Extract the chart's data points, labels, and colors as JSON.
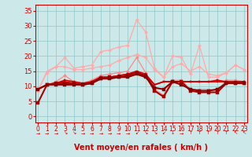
{
  "xlabel": "Vent moyen/en rafales ( km/h )",
  "bg_color": "#cce8e8",
  "grid_color": "#99cccc",
  "x_values": [
    0,
    1,
    2,
    3,
    4,
    5,
    6,
    7,
    8,
    9,
    10,
    11,
    12,
    13,
    14,
    15,
    16,
    17,
    18,
    19,
    20,
    21,
    22,
    23
  ],
  "series": [
    {
      "label": "line_pink1",
      "color": "#ffaaaa",
      "lw": 0.9,
      "marker": "D",
      "ms": 2.0,
      "y": [
        8.5,
        14.5,
        16.5,
        19.5,
        16.0,
        16.5,
        17.0,
        21.5,
        22.0,
        23.0,
        23.5,
        32.0,
        28.0,
        16.0,
        13.0,
        20.0,
        19.5,
        14.0,
        23.5,
        13.0,
        13.0,
        14.5,
        17.0,
        15.5
      ]
    },
    {
      "label": "line_pink2",
      "color": "#ffaaaa",
      "lw": 0.9,
      "marker": "D",
      "ms": 2.0,
      "y": [
        8.5,
        15.0,
        16.5,
        16.5,
        15.5,
        15.5,
        16.0,
        16.5,
        17.0,
        18.5,
        19.5,
        20.5,
        19.5,
        15.5,
        13.0,
        16.5,
        17.5,
        15.0,
        16.5,
        14.0,
        13.5,
        14.5,
        17.0,
        15.5
      ]
    },
    {
      "label": "line_med1",
      "color": "#ff8888",
      "lw": 0.9,
      "marker": "D",
      "ms": 2.0,
      "y": [
        9.0,
        10.5,
        11.5,
        13.5,
        11.5,
        11.0,
        12.0,
        13.5,
        14.0,
        14.5,
        15.0,
        19.5,
        14.5,
        9.0,
        7.0,
        12.0,
        12.0,
        9.0,
        9.0,
        9.0,
        8.5,
        12.0,
        12.0,
        11.5
      ]
    },
    {
      "label": "line_flat1",
      "color": "#cc0000",
      "lw": 1.2,
      "marker": "s",
      "ms": 2.0,
      "y": [
        9.0,
        10.5,
        11.0,
        11.5,
        11.0,
        10.5,
        11.5,
        13.0,
        13.0,
        13.5,
        14.0,
        14.5,
        13.5,
        10.5,
        11.5,
        11.5,
        11.5,
        11.5,
        11.5,
        11.5,
        11.5,
        11.5,
        11.5,
        11.5
      ]
    },
    {
      "label": "line_flat2",
      "color": "#cc0000",
      "lw": 1.2,
      "marker": "s",
      "ms": 2.0,
      "y": [
        9.0,
        10.5,
        11.0,
        12.0,
        11.5,
        11.0,
        11.5,
        13.0,
        13.0,
        13.5,
        14.0,
        15.0,
        14.0,
        10.5,
        11.5,
        11.5,
        11.5,
        11.5,
        11.5,
        11.5,
        12.0,
        11.5,
        11.5,
        11.5
      ]
    },
    {
      "label": "line_dark",
      "color": "#aa0000",
      "lw": 1.5,
      "marker": "s",
      "ms": 2.5,
      "y": [
        4.5,
        10.5,
        11.0,
        11.0,
        11.0,
        10.5,
        11.0,
        12.5,
        13.0,
        13.0,
        13.5,
        14.5,
        13.5,
        8.5,
        6.5,
        11.5,
        11.5,
        8.5,
        8.0,
        8.0,
        8.0,
        11.0,
        11.0,
        11.0
      ]
    },
    {
      "label": "line_darkest",
      "color": "#880000",
      "lw": 1.5,
      "marker": "s",
      "ms": 2.5,
      "y": [
        9.0,
        10.5,
        10.5,
        10.5,
        10.5,
        10.5,
        11.0,
        12.5,
        12.5,
        13.0,
        13.0,
        14.0,
        13.0,
        9.5,
        9.0,
        11.5,
        10.5,
        9.0,
        8.5,
        8.5,
        9.0,
        11.0,
        11.0,
        11.0
      ]
    }
  ],
  "ylim": [
    -2,
    37
  ],
  "yticks": [
    0,
    5,
    10,
    15,
    20,
    25,
    30,
    35
  ],
  "xlim": [
    -0.3,
    23.3
  ],
  "xtick_labels": [
    "0",
    "1",
    "2",
    "3",
    "4",
    "5",
    "6",
    "7",
    "8",
    "9",
    "10",
    "11",
    "12",
    "13",
    "14",
    "15",
    "16",
    "17",
    "18",
    "19",
    "20",
    "21",
    "22",
    "23"
  ],
  "axis_color": "#cc0000",
  "tick_color": "#cc0000",
  "label_color": "#cc0000",
  "wind_symbols": [
    "→",
    "→",
    "→",
    "↘",
    "↘",
    "→",
    "→",
    "→",
    "→",
    "→",
    "→",
    "↙",
    "↘",
    "↘",
    "↙",
    "↓",
    "→",
    "↑",
    "↑",
    "↑",
    "↑",
    "↑",
    "↖",
    "↖"
  ]
}
